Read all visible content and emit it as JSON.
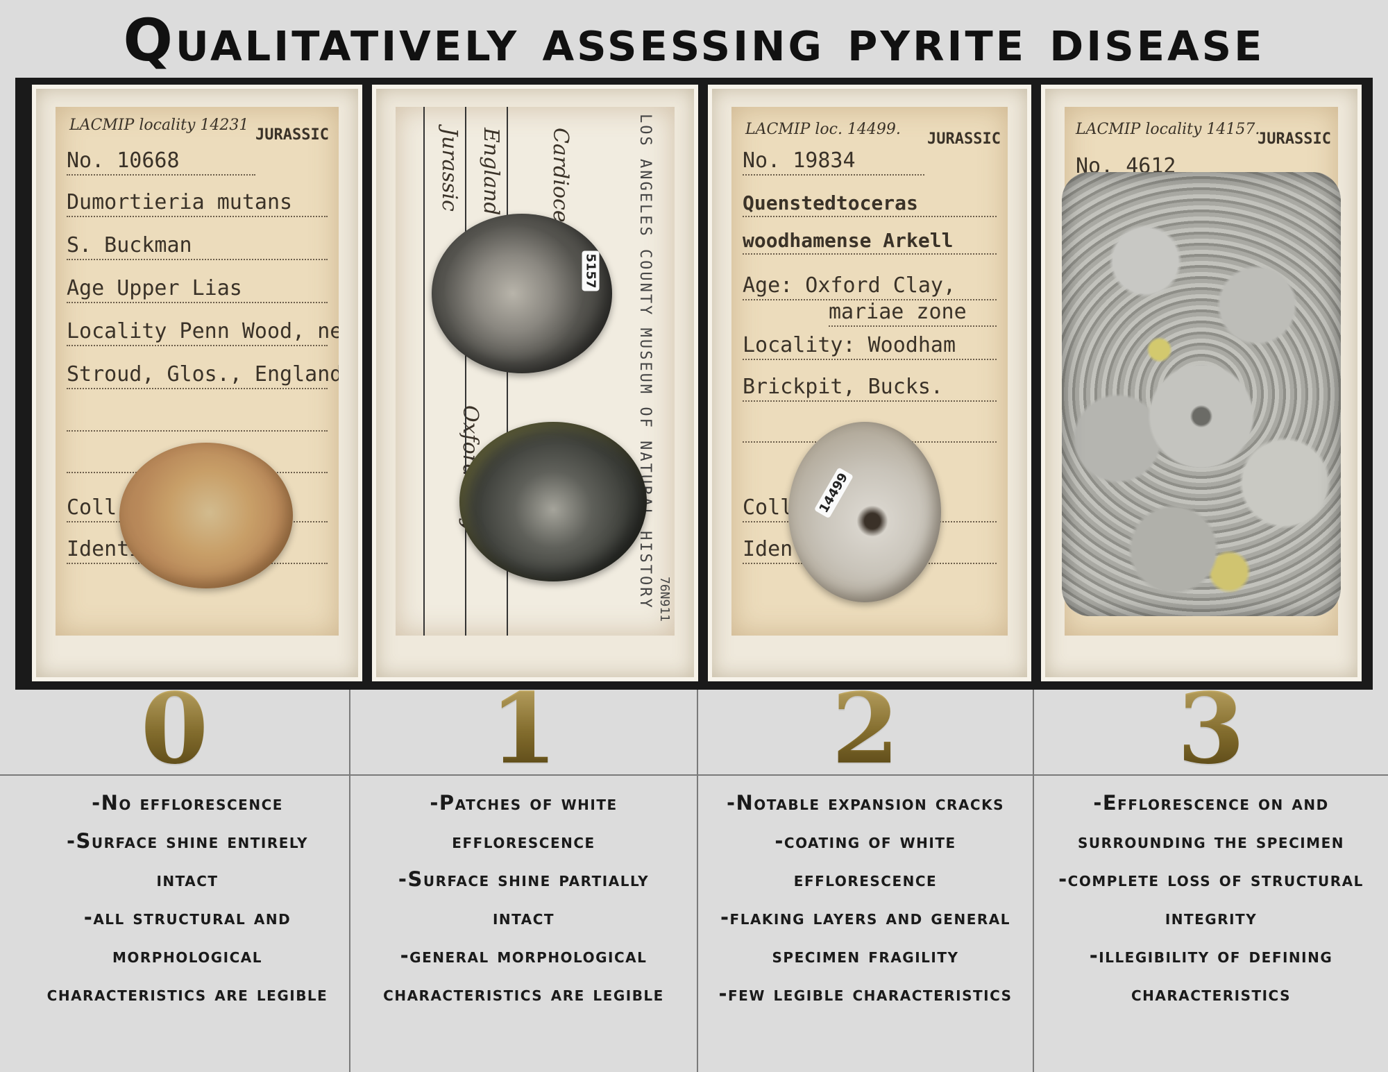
{
  "title": "Qualitatively assessing pyrite disease",
  "panels": [
    {
      "grade": "0",
      "card": {
        "header": "LACMIP locality 14231",
        "period": "JURASSIC",
        "number": "No. 10668",
        "lines": [
          "Dumortieria mutans",
          "S. Buckman",
          "Age Upper Lias",
          "Locality Penn Wood, near",
          "Stroud, Glos., England",
          "",
          "",
          "Coll...Buckman",
          "Identified by"
        ]
      },
      "description": [
        "-No efflorescence",
        "-Surface shine entirely",
        "intact",
        "-all structural and",
        "morphological",
        "characteristics are legible"
      ]
    },
    {
      "grade": "1",
      "card": {
        "header": "LOS ANGELES COUNTY MUSEUM OF NATURAL HISTORY",
        "hand_lines": [
          "Cardioceras",
          "England",
          "Jurassic",
          "Oxford Clay"
        ],
        "sticker": "5157",
        "code": "76N911"
      },
      "description": [
        "-Patches of white",
        "efflorescence",
        "-Surface shine partially",
        "intact",
        "-general morphological",
        "characteristics are legible"
      ]
    },
    {
      "grade": "2",
      "card": {
        "header": "LACMIP loc. 14499.",
        "period": "JURASSIC",
        "number": "No. 19834",
        "lines": [
          "Quenstedtoceras",
          "woodhamense  Arkell",
          "Age: Oxford Clay,",
          "mariae zone",
          "Locality: Woodham",
          "Brickpit, Bucks.",
          "",
          "Coll...",
          "Identified by:"
        ],
        "sticker": "14499"
      },
      "description": [
        "-Notable expansion cracks",
        "-coating of white",
        "efflorescence",
        "-flaking layers and general",
        "specimen fragility",
        "-few legible characteristics"
      ]
    },
    {
      "grade": "3",
      "card": {
        "header": "LACMIP locality 14157.",
        "period": "JURASSIC",
        "number": "No. 4612"
      },
      "description": [
        "-Efflorescence on and",
        "surrounding the specimen",
        "-complete loss of structural",
        "integrity",
        "-illegibility of defining",
        "characteristics"
      ]
    }
  ],
  "colors": {
    "background": "#dcdcdc",
    "number_gold": "#8c7430",
    "text": "#1a1a1a"
  }
}
